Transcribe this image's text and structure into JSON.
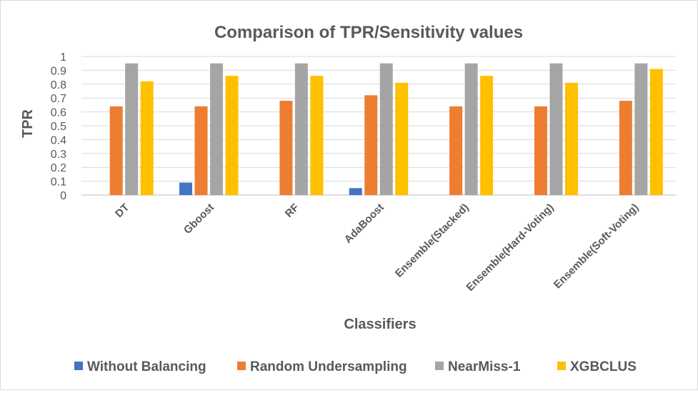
{
  "chart_data": {
    "type": "bar",
    "title": "Comparison of TPR/Sensitivity values",
    "xlabel": "Classifiers",
    "ylabel": "TPR",
    "ylim": [
      0,
      1
    ],
    "yticks": [
      "0",
      "0.1",
      "0.2",
      "0.3",
      "0.4",
      "0.5",
      "0.6",
      "0.7",
      "0.8",
      "0.9",
      "1"
    ],
    "grid": true,
    "legend_position": "bottom",
    "categories": [
      "DT",
      "Gboost",
      "RF",
      "AdaBoost",
      "Ensemble(Stacked)",
      "Ensemble(Hard-Voting)",
      "Ensemble(Soft-Voting)"
    ],
    "series": [
      {
        "name": "Without Balancing",
        "color": "#4472c4",
        "values": [
          0,
          0.09,
          0,
          0.05,
          0,
          0,
          0
        ]
      },
      {
        "name": "Random Undersampling",
        "color": "#ed7d31",
        "values": [
          0.64,
          0.64,
          0.68,
          0.72,
          0.64,
          0.64,
          0.68
        ]
      },
      {
        "name": "NearMiss-1",
        "color": "#a5a5a5",
        "values": [
          0.95,
          0.95,
          0.95,
          0.95,
          0.95,
          0.95,
          0.95
        ]
      },
      {
        "name": "XGBCLUS",
        "color": "#ffc000",
        "values": [
          0.82,
          0.86,
          0.86,
          0.81,
          0.86,
          0.81,
          0.91
        ]
      }
    ]
  }
}
